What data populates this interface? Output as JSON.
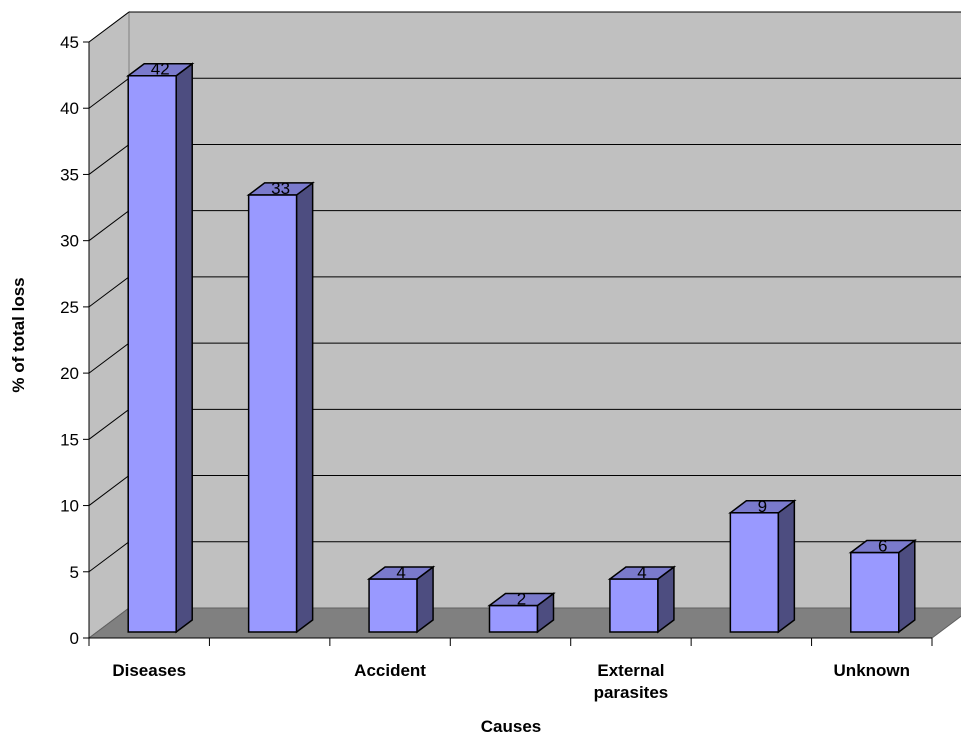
{
  "chart_data": {
    "type": "bar",
    "style": "3d-column",
    "categories": [
      "Diseases",
      "",
      "Accident",
      "",
      "External parasites",
      "",
      "Unknown"
    ],
    "values": [
      42,
      33,
      4,
      2,
      4,
      9,
      6
    ],
    "xlabel": "Causes",
    "ylabel": "% of total loss",
    "ylim": [
      0,
      45
    ],
    "yticks": [
      "0",
      "5",
      "10",
      "15",
      "20",
      "25",
      "30",
      "35",
      "40",
      "45"
    ],
    "grid": true,
    "colors": {
      "bar_front": "#9999ff",
      "bar_side": "#4d4d80",
      "bar_top": "#7a7acc",
      "wall": "#c0c0c0",
      "floor": "#808080",
      "gridline": "#000000"
    }
  }
}
